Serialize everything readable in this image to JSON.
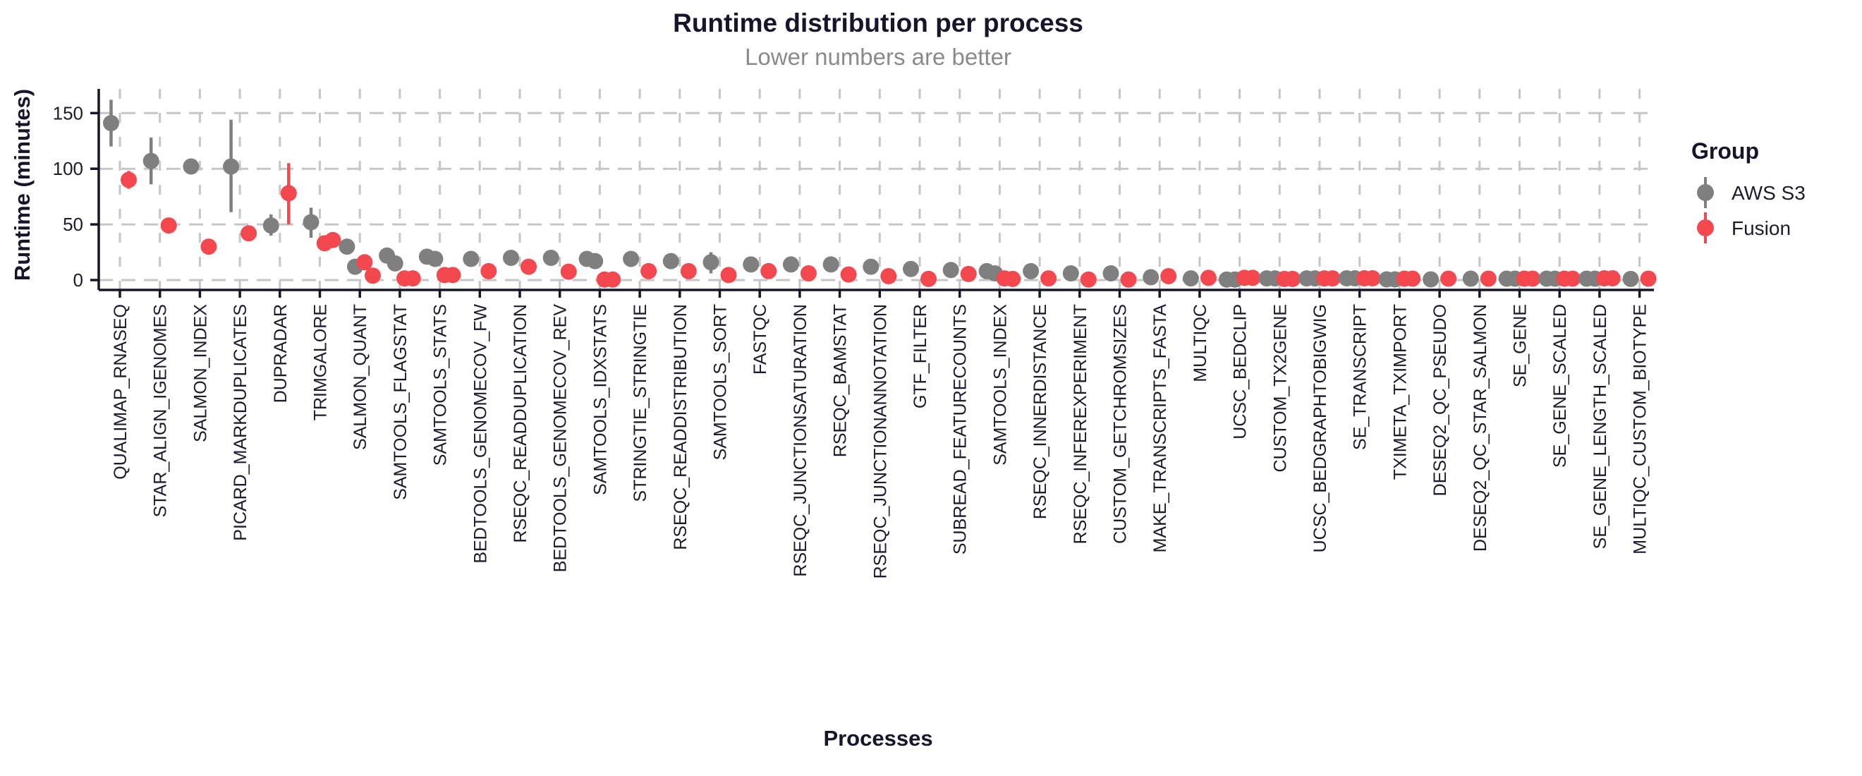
{
  "title": {
    "text": "Runtime distribution per process"
  },
  "subtitle": {
    "text": "Lower numbers are better"
  },
  "axes": {
    "x_title": "Processes",
    "y_title": "Runtime (minutes)"
  },
  "legend": {
    "title": "Group",
    "items": [
      {
        "label": "AWS S3",
        "color": "#7f7f7f"
      },
      {
        "label": "Fusion",
        "color": "#f4484f"
      }
    ]
  },
  "colors": {
    "background": "#ffffff",
    "grid": "#c6c6c6",
    "axis": "#17172b",
    "title": "#15152b",
    "subtitle": "#8a8a8a",
    "aws": "#7f7f7f",
    "fusion": "#f4484f"
  },
  "chart_data": {
    "type": "scatter",
    "title": "Runtime distribution per process",
    "subtitle": "Lower numbers are better",
    "xlabel": "Processes",
    "ylabel": "Runtime (minutes)",
    "y_ticks": [
      0,
      50,
      100,
      150
    ],
    "ylim": [
      0,
      172
    ],
    "grid": true,
    "legend_position": "right",
    "categories": [
      "QUALIMAP_RNASEQ",
      "STAR_ALIGN_IGENOMES",
      "SALMON_INDEX",
      "PICARD_MARKDUPLICATES",
      "DUPRADAR",
      "TRIMGALORE",
      "SALMON_QUANT",
      "SAMTOOLS_FLAGSTAT",
      "SAMTOOLS_STATS",
      "BEDTOOLS_GENOMECOV_FW",
      "RSEQC_READDUPLICATION",
      "BEDTOOLS_GENOMECOV_REV",
      "SAMTOOLS_IDXSTATS",
      "STRINGTIE_STRINGTIE",
      "RSEQC_READDISTRIBUTION",
      "SAMTOOLS_SORT",
      "FASTQC",
      "RSEQC_JUNCTIONSATURATION",
      "RSEQC_BAMSTAT",
      "RSEQC_JUNCTIONANNOTATION",
      "GTF_FILTER",
      "SUBREAD_FEATURECOUNTS",
      "SAMTOOLS_INDEX",
      "RSEQC_INNERDISTANCE",
      "RSEQC_INFEREXPERIMENT",
      "CUSTOM_GETCHROMSIZES",
      "MAKE_TRANSCRIPTS_FASTA",
      "MULTIQC",
      "UCSC_BEDCLIP",
      "CUSTOM_TX2GENE",
      "UCSC_BEDGRAPHTOBIGWIG",
      "SE_TRANSCRIPT",
      "TXIMETA_TXIMPORT",
      "DESEQ2_QC_PSEUDO",
      "DESEQ2_QC_STAR_SALMON",
      "SE_GENE",
      "SE_GENE_SCALED",
      "SE_GENE_LENGTH_SCALED",
      "MULTIQC_CUSTOM_BIOTYPE"
    ],
    "series": [
      {
        "name": "AWS S3",
        "color": "#7f7f7f",
        "points": [
          [
            141
          ],
          [
            107
          ],
          [
            102
          ],
          [
            102
          ],
          [
            49
          ],
          [
            52
          ],
          [
            30,
            12
          ],
          [
            22,
            15
          ],
          [
            21,
            19
          ],
          [
            19
          ],
          [
            20
          ],
          [
            20
          ],
          [
            19,
            17
          ],
          [
            19
          ],
          [
            17
          ],
          [
            16
          ],
          [
            14
          ],
          [
            14
          ],
          [
            14
          ],
          [
            12
          ],
          [
            10
          ],
          [
            9
          ],
          [
            8,
            6
          ],
          [
            8
          ],
          [
            6
          ],
          [
            6
          ],
          [
            2.5
          ],
          [
            1.5
          ],
          [
            0.5,
            0.5
          ],
          [
            1.5,
            1.5
          ],
          [
            1.5,
            1.5
          ],
          [
            1.6,
            1.6
          ],
          [
            0.6,
            0.6
          ],
          [
            0.6
          ],
          [
            1.3
          ],
          [
            1.3,
            1.3
          ],
          [
            1.3,
            1.3
          ],
          [
            1.3,
            1.3
          ],
          [
            1
          ]
        ],
        "ranges": [
          [
            120,
            162
          ],
          [
            86,
            128
          ],
          null,
          [
            61,
            144
          ],
          [
            40,
            59
          ],
          [
            38,
            65
          ],
          null,
          null,
          null,
          null,
          null,
          null,
          null,
          null,
          null,
          [
            6,
            25
          ],
          null,
          null,
          null,
          null,
          null,
          null,
          null,
          null,
          null,
          null,
          null,
          null,
          null,
          null,
          null,
          null,
          null,
          null,
          null,
          null,
          null,
          null,
          null
        ]
      },
      {
        "name": "Fusion",
        "color": "#f4484f",
        "points": [
          [
            90
          ],
          [
            49
          ],
          [
            30
          ],
          [
            42
          ],
          [
            78
          ],
          [
            33,
            36
          ],
          [
            16,
            4
          ],
          [
            1.5,
            1.5
          ],
          [
            4.5,
            4.5
          ],
          [
            8
          ],
          [
            12
          ],
          [
            7.5
          ],
          [
            0.5,
            0.5
          ],
          [
            8
          ],
          [
            8
          ],
          [
            4.5
          ],
          [
            8
          ],
          [
            6
          ],
          [
            5
          ],
          [
            3.5
          ],
          [
            1
          ],
          [
            5.5
          ],
          [
            1.5,
            1
          ],
          [
            1.5
          ],
          [
            0.5
          ],
          [
            0.5
          ],
          [
            3.5
          ],
          [
            2
          ],
          [
            2,
            2
          ],
          [
            1,
            1
          ],
          [
            1.5,
            1.5
          ],
          [
            1.6,
            1.6
          ],
          [
            1.3,
            1.3
          ],
          [
            1.3
          ],
          [
            1.3
          ],
          [
            1.3,
            1.3
          ],
          [
            1.3,
            1.3
          ],
          [
            1.6,
            1.6
          ],
          [
            1.3
          ]
        ],
        "ranges": [
          [
            82,
            98
          ],
          null,
          null,
          null,
          [
            50,
            105
          ],
          null,
          null,
          null,
          null,
          null,
          null,
          null,
          null,
          null,
          null,
          null,
          null,
          null,
          null,
          null,
          null,
          null,
          null,
          null,
          null,
          null,
          null,
          null,
          null,
          null,
          null,
          null,
          null,
          null,
          null,
          null,
          null,
          null,
          null
        ]
      }
    ]
  }
}
